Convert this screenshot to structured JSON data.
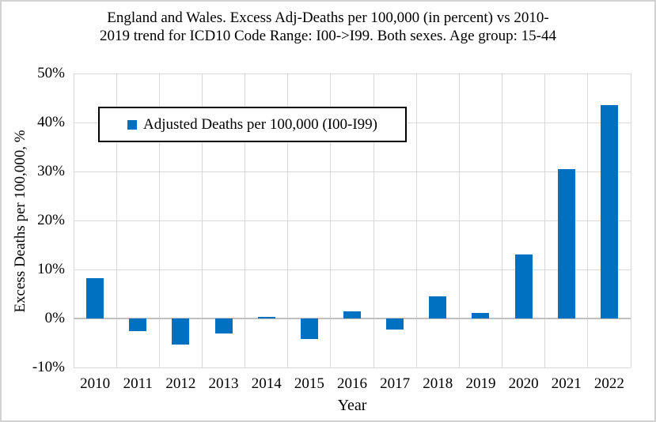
{
  "chart_data": {
    "type": "bar",
    "title": "England and Wales. Excess Adj-Deaths per 100,000 (in percent) vs 2010-2019 trend for ICD10 Code Range: I00->I99. Both sexes. Age group: 15-44",
    "series_name": "Adjusted Deaths per 100,000 (I00-I99)",
    "xlabel": "Year",
    "ylabel": "Excess Deaths per 100,000, %",
    "categories": [
      "2010",
      "2011",
      "2012",
      "2013",
      "2014",
      "2015",
      "2016",
      "2017",
      "2018",
      "2019",
      "2020",
      "2021",
      "2022"
    ],
    "values": [
      8.3,
      -2.5,
      -5.4,
      -3.0,
      0.4,
      -4.2,
      1.4,
      -2.3,
      4.5,
      1.1,
      13.0,
      30.5,
      43.5
    ],
    "unit": "percent",
    "ylim": [
      -10,
      50
    ],
    "yticks": [
      {
        "value": 50,
        "label": "50%"
      },
      {
        "value": 40,
        "label": "40%"
      },
      {
        "value": 30,
        "label": "30%"
      },
      {
        "value": 20,
        "label": "20%"
      },
      {
        "value": 10,
        "label": "10%"
      },
      {
        "value": 0,
        "label": "0%"
      },
      {
        "value": -10,
        "label": "-10%"
      }
    ],
    "grid": true,
    "legend_position": "upper-left-inside",
    "colors": {
      "bar": "#0070C0",
      "gridline": "#D9D9D9",
      "zero_line": "#C0C0C0",
      "legend_border": "#000000",
      "figure_border": "#D2D2D2",
      "text": "#000000"
    }
  }
}
